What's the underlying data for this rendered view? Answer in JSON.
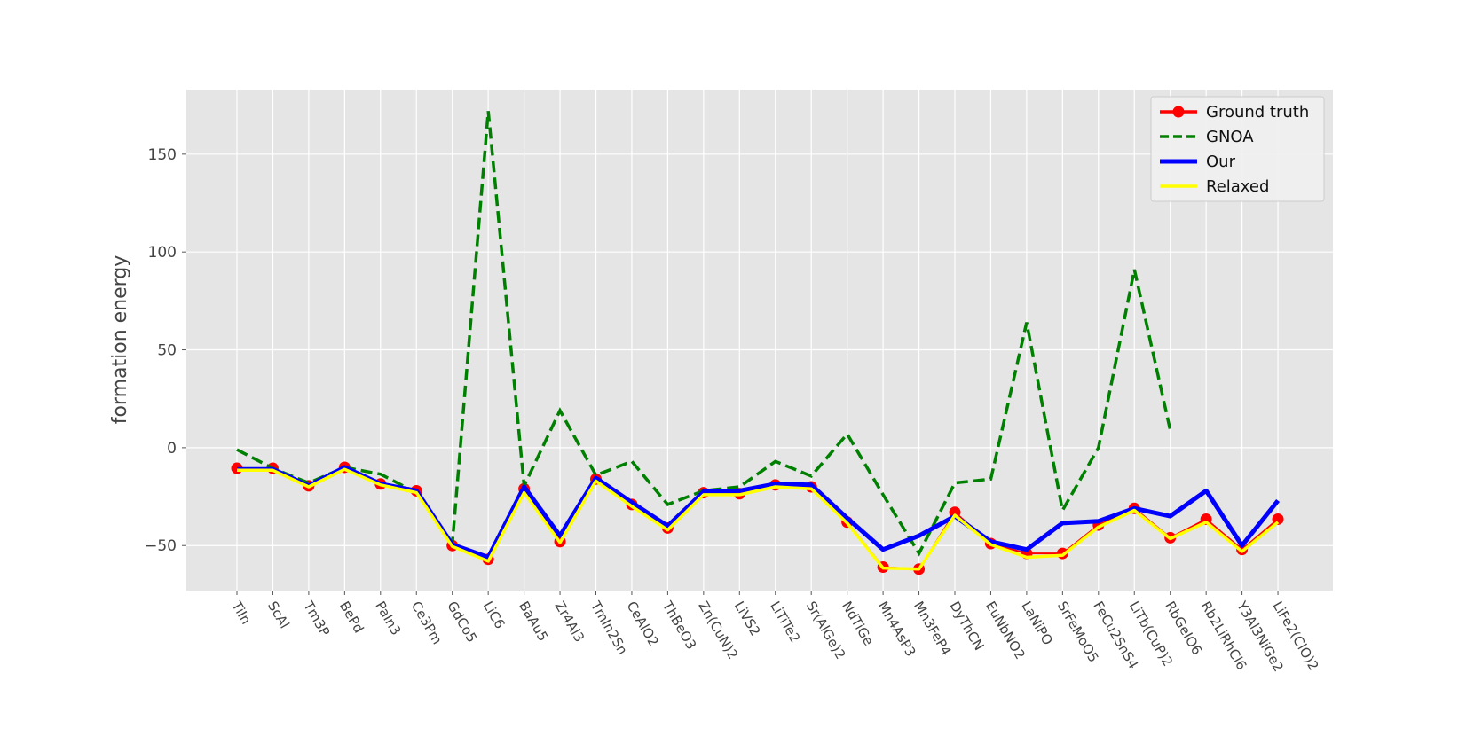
{
  "chart_data": {
    "type": "line",
    "title": "",
    "xlabel": "",
    "ylabel": "formation energy",
    "ylim": [
      -73,
      183
    ],
    "yticks": [
      -50,
      0,
      50,
      100,
      150
    ],
    "ytick_labels": [
      "−50",
      "0",
      "50",
      "100",
      "150"
    ],
    "grid": true,
    "legend_position": "top-right",
    "categories": [
      "TiIn",
      "ScAl",
      "Tm3P",
      "BePd",
      "PaIn3",
      "Ce3Pm",
      "GdCo5",
      "LiC6",
      "BaAu5",
      "Zr4Al3",
      "TmIn2Sn",
      "CeAlO2",
      "ThBeO3",
      "Zn(CuN)2",
      "LiVS2",
      "LiTiTe2",
      "Sr(AlGe)2",
      "NdTiGe",
      "Mn4AsP3",
      "Mn3FeP4",
      "DyThCN",
      "EuNbNO2",
      "LaNiPO",
      "SrFeMoO5",
      "FeCu2SnS4",
      "LiTb(CuP)2",
      "RbGeIO6",
      "Rb2LiRhCl6",
      "Y3Al3NiGe2",
      "LiFe2(ClO)2"
    ],
    "series": [
      {
        "name": "Ground truth",
        "color": "#ff0000",
        "style": "solid-markers",
        "values": [
          -10.5,
          -10.5,
          -19.5,
          -10,
          -18.5,
          -22,
          -50,
          -57,
          -21,
          -48,
          -16,
          -29,
          -41,
          -23,
          -23.5,
          -19,
          -20,
          -38,
          -61,
          -62,
          -33,
          -49,
          -54,
          -54,
          -39.5,
          -31,
          -46,
          -36.5,
          -52,
          -36.5
        ]
      },
      {
        "name": "GNOA",
        "color": "#008000",
        "style": "dashed",
        "values": [
          -1,
          -10.5,
          -18,
          -10,
          -13.5,
          -23,
          -49,
          172,
          -19.5,
          19,
          -14,
          -7,
          -29,
          -22,
          -20,
          -7,
          -14.5,
          7,
          -24,
          -54,
          -18,
          -16,
          64,
          -32,
          0,
          91,
          9,
          null,
          null,
          null
        ]
      },
      {
        "name": "Our",
        "color": "#0000ff",
        "style": "thick",
        "values": [
          -11,
          -11,
          -19.5,
          -10,
          -18.5,
          -22,
          -49.5,
          -56,
          -20,
          -45,
          -15.5,
          -28,
          -40,
          -22.5,
          -22,
          -18.5,
          -19,
          -36,
          -52,
          -45,
          -35,
          -48,
          -52,
          -38.5,
          -37.5,
          -31,
          -35,
          -22,
          -50,
          -27
        ]
      },
      {
        "name": "Relaxed",
        "color": "#ffff00",
        "style": "solid",
        "values": [
          -11.5,
          -11.5,
          -20,
          -11,
          -19,
          -23,
          -50.5,
          -58,
          -23,
          -48.5,
          -17,
          -30,
          -42,
          -24,
          -24,
          -20,
          -21,
          -38.5,
          -61.5,
          -62,
          -34.5,
          -49.5,
          -56,
          -55,
          -40.5,
          -32,
          -46.5,
          -38,
          -53,
          -38
        ]
      }
    ]
  }
}
